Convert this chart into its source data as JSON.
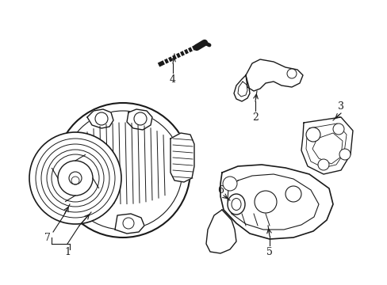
{
  "background_color": "#ffffff",
  "line_color": "#1a1a1a",
  "line_width": 1.0,
  "fig_width": 4.89,
  "fig_height": 3.6,
  "dpi": 100
}
